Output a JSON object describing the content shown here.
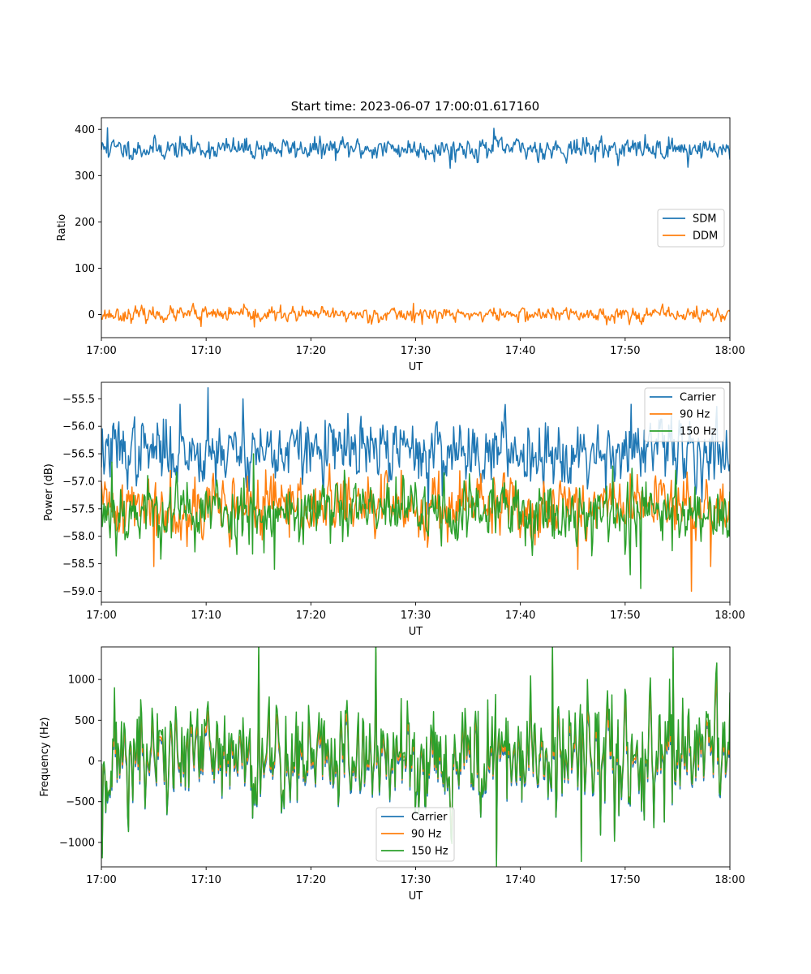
{
  "figure": {
    "title": "Start time: 2023-06-07 17:00:01.617160"
  },
  "colors": {
    "blue": "#1f77b4",
    "orange": "#ff7f0e",
    "green": "#2ca02c"
  },
  "chart_data": [
    {
      "type": "line",
      "title": "Start time: 2023-06-07 17:00:01.617160",
      "xlabel": "UT",
      "ylabel": "Ratio",
      "xlim": [
        "17:00",
        "18:00"
      ],
      "xticks": [
        "17:00",
        "17:10",
        "17:20",
        "17:30",
        "17:40",
        "17:50",
        "18:00"
      ],
      "ylim": [
        -50,
        425
      ],
      "yticks": [
        0,
        100,
        200,
        300,
        400
      ],
      "ytick_labels": [
        "0",
        "100",
        "200",
        "300",
        "400"
      ],
      "legend": "center-right",
      "grid": false,
      "series": [
        {
          "name": "SDM",
          "color": "#1f77b4",
          "mean": 358,
          "noise": 12,
          "seed": 11,
          "spikes": [
            [
              0.6,
              403
            ],
            [
              33.3,
              316
            ],
            [
              37.5,
              402
            ],
            [
              56.0,
              318
            ]
          ]
        },
        {
          "name": "DDM",
          "color": "#ff7f0e",
          "mean": 0,
          "noise": 8,
          "seed": 23,
          "spikes": [
            [
              8.8,
              24
            ],
            [
              9.5,
              -26
            ],
            [
              14.6,
              -27
            ],
            [
              29.8,
              24
            ]
          ]
        }
      ]
    },
    {
      "type": "line",
      "xlabel": "UT",
      "ylabel": "Power (dB)",
      "xlim": [
        "17:00",
        "18:00"
      ],
      "xticks": [
        "17:00",
        "17:10",
        "17:20",
        "17:30",
        "17:40",
        "17:50",
        "18:00"
      ],
      "ylim": [
        -59.2,
        -55.2
      ],
      "yticks": [
        -59.0,
        -58.5,
        -58.0,
        -57.5,
        -57.0,
        -56.5,
        -56.0,
        -55.5
      ],
      "ytick_labels": [
        "−59.0",
        "−58.5",
        "−58.0",
        "−57.5",
        "−57.0",
        "−56.5",
        "−56.0",
        "−55.5"
      ],
      "legend": "top-right",
      "grid": false,
      "series": [
        {
          "name": "Carrier",
          "color": "#1f77b4",
          "mean": -56.45,
          "noise": 0.3,
          "seed": 37,
          "spikes": [
            [
              10.2,
              -55.3
            ],
            [
              7.5,
              -55.6
            ],
            [
              13.5,
              -55.5
            ],
            [
              31.2,
              -57.6
            ],
            [
              50.6,
              -55.6
            ]
          ]
        },
        {
          "name": "90 Hz",
          "color": "#ff7f0e",
          "mean": -57.45,
          "noise": 0.3,
          "seed": 41,
          "spikes": [
            [
              5.0,
              -58.55
            ],
            [
              45.5,
              -58.6
            ],
            [
              56.3,
              -59.0
            ],
            [
              58.2,
              -58.55
            ]
          ]
        },
        {
          "name": "150 Hz",
          "color": "#2ca02c",
          "mean": -57.55,
          "noise": 0.32,
          "seed": 53,
          "spikes": [
            [
              1.0,
              -56.65
            ],
            [
              14.5,
              -56.5
            ],
            [
              16.5,
              -58.6
            ],
            [
              51.5,
              -58.95
            ],
            [
              50.5,
              -58.7
            ]
          ]
        }
      ]
    },
    {
      "type": "line",
      "xlabel": "UT",
      "ylabel": "Frequency (Hz)",
      "xlim": [
        "17:00",
        "18:00"
      ],
      "xticks": [
        "17:00",
        "17:10",
        "17:20",
        "17:30",
        "17:40",
        "17:50",
        "18:00"
      ],
      "ylim": [
        -1300,
        1400
      ],
      "yticks": [
        -1000,
        -500,
        0,
        500,
        1000
      ],
      "ytick_labels": [
        "−1000",
        "−500",
        "0",
        "500",
        "1000"
      ],
      "legend": "bottom-center",
      "grid": false,
      "base": {
        "mean": 50,
        "noise": 330,
        "seed": 71,
        "spikes": [
          [
            0.1,
            -1080
          ],
          [
            15.0,
            1320
          ],
          [
            26.2,
            1350
          ],
          [
            37.7,
            -1170
          ],
          [
            43.1,
            1320
          ],
          [
            45.8,
            -1120
          ],
          [
            54.6,
            1280
          ]
        ]
      },
      "series": [
        {
          "name": "Carrier",
          "color": "#1f77b4",
          "offset": -60,
          "gain": 1.0
        },
        {
          "name": "90 Hz",
          "color": "#ff7f0e",
          "offset": -20,
          "gain": 1.0
        },
        {
          "name": "150 Hz",
          "color": "#2ca02c",
          "offset": 20,
          "gain": 1.12
        }
      ]
    }
  ]
}
